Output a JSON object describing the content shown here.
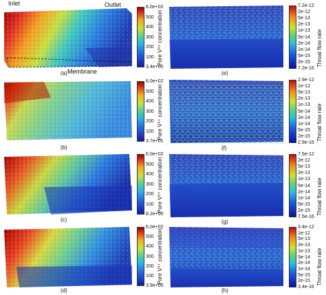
{
  "annotations": {
    "inlet": "Inlet",
    "outlet": "Outlet",
    "membrane": "Membrane"
  },
  "conc_title": "Pore V³⁺ concentration",
  "flow_title": "Throat flow rate",
  "panels_left": [
    {
      "label": "(a)",
      "ticks": [
        "6.0e+02",
        "500",
        "400",
        "300",
        "200",
        "100",
        "3.4e+00"
      ]
    },
    {
      "label": "(b)",
      "ticks": [
        "6.0e+02",
        "500",
        "400",
        "300",
        "200",
        "100",
        "3.7e+01"
      ]
    },
    {
      "label": "(c)",
      "ticks": [
        "6.0e+02",
        "500",
        "400",
        "300",
        "200",
        "100",
        "8.2e+00"
      ]
    },
    {
      "label": "(d)",
      "ticks": [
        "6.0e+02",
        "500",
        "400",
        "300",
        "200",
        "100",
        "3.9e+00"
      ]
    }
  ],
  "panels_right": [
    {
      "label": "(e)",
      "ticks": [
        "7.2e-12",
        "2e-12",
        "5e-13",
        "2e-13",
        "1e-13",
        "5e-14",
        "2e-14",
        "1e-14",
        "5e-15",
        "2e-15",
        "7.2e-16"
      ]
    },
    {
      "label": "(f)",
      "ticks": [
        "2.9e-12",
        "1e-12",
        "5e-13",
        "2e-13",
        "1e-13",
        "5e-14",
        "2e-14",
        "1e-14",
        "5e-15",
        "2e-15",
        "2.9e-16"
      ]
    },
    {
      "label": "(g)",
      "ticks": [
        "7.5e-12",
        "2e-12",
        "5e-13",
        "2e-13",
        "1e-13",
        "5e-14",
        "2e-14",
        "1e-14",
        "5e-15",
        "2e-15",
        "7.5e-16"
      ]
    },
    {
      "label": "(h)",
      "ticks": [
        "3.4e-12",
        "1e-12",
        "5e-13",
        "2e-13",
        "1e-13",
        "5e-14",
        "2e-14",
        "1e-14",
        "5e-15",
        "2e-15",
        "3.4e-16"
      ]
    }
  ]
}
